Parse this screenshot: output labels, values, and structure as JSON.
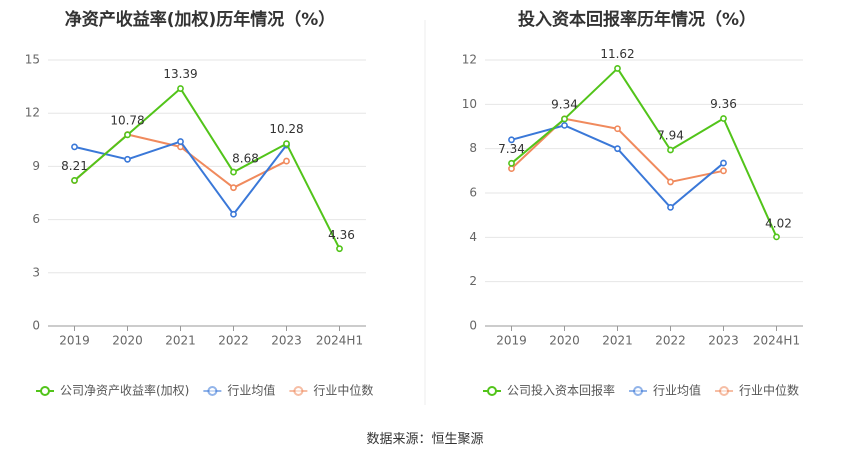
{
  "source": "数据来源：恒生聚源",
  "colors": {
    "company": "#52c41a",
    "industry_avg": "#3a78d8",
    "industry_median": "#f08a5d",
    "grid": "#e6e6e6",
    "axis": "#999999",
    "tick_text": "#666666"
  },
  "chart_data": [
    {
      "type": "line",
      "title": "净资产收益率(加权)历年情况（%）",
      "categories": [
        "2019",
        "2020",
        "2021",
        "2022",
        "2023",
        "2024H1"
      ],
      "ylim": [
        0,
        15
      ],
      "yticks": [
        0,
        3,
        6,
        9,
        12,
        15
      ],
      "grid": true,
      "legend_position": "bottom-left",
      "series": [
        {
          "name": "公司净资产收益率(加权)",
          "key": "company",
          "values": [
            8.21,
            10.78,
            13.39,
            8.68,
            10.28,
            4.36
          ],
          "labels": [
            "8.21",
            "10.78",
            "13.39",
            "8.68",
            "10.28",
            "4.36"
          ]
        },
        {
          "name": "行业均值",
          "key": "industry_avg",
          "values": [
            10.1,
            9.4,
            10.4,
            6.3,
            10.2,
            null
          ]
        },
        {
          "name": "行业中位数",
          "key": "industry_median",
          "values": [
            8.2,
            10.8,
            10.1,
            7.8,
            9.3,
            null
          ]
        }
      ]
    },
    {
      "type": "line",
      "title": "投入资本回报率历年情况（%）",
      "categories": [
        "2019",
        "2020",
        "2021",
        "2022",
        "2023",
        "2024H1"
      ],
      "ylim": [
        0,
        12
      ],
      "yticks": [
        0,
        2,
        4,
        6,
        8,
        10,
        12
      ],
      "grid": true,
      "legend_position": "bottom-left",
      "series": [
        {
          "name": "公司投入资本回报率",
          "key": "company",
          "values": [
            7.34,
            9.34,
            11.62,
            7.94,
            9.36,
            4.02
          ],
          "labels": [
            "7.34",
            "9.34",
            "11.62",
            "7.94",
            "9.36",
            "4.02"
          ]
        },
        {
          "name": "行业均值",
          "key": "industry_avg",
          "values": [
            8.4,
            9.05,
            8.0,
            5.35,
            7.35,
            null
          ]
        },
        {
          "name": "行业中位数",
          "key": "industry_median",
          "values": [
            7.1,
            9.35,
            8.9,
            6.5,
            7.0,
            null
          ]
        }
      ]
    }
  ]
}
